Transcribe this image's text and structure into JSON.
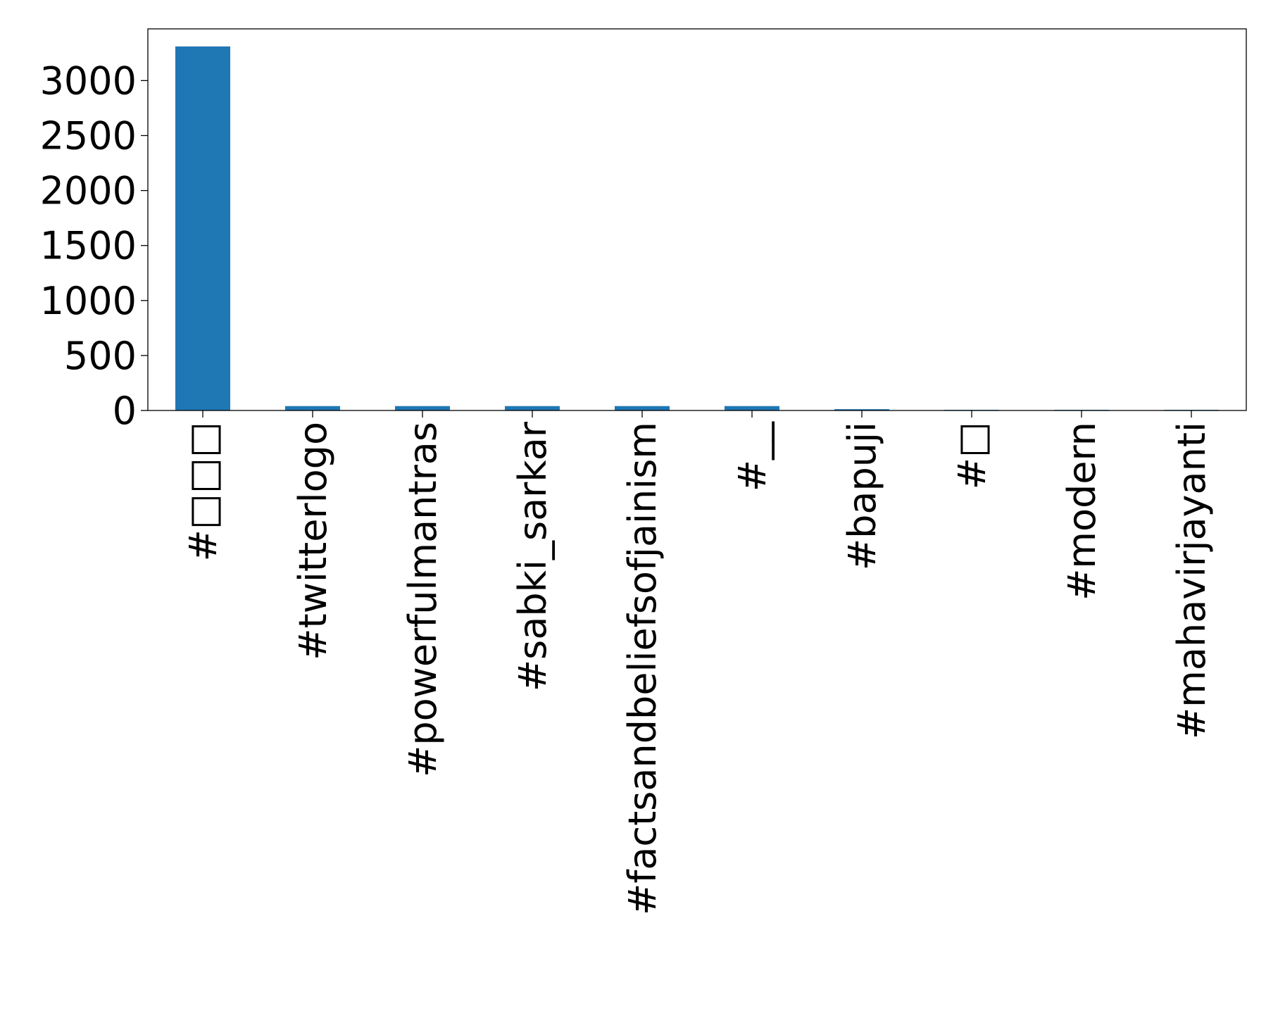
{
  "chart_data": {
    "type": "bar",
    "title": "",
    "xlabel": "",
    "ylabel": "",
    "categories": [
      "#□□□",
      "#twitterlogo",
      "#powerfulmantras",
      "#sabki_sarkar",
      "#factsandbeliefsofjainism",
      "#__",
      "#bapuji",
      "#□",
      "#modern",
      "#mahavirjayanti"
    ],
    "values": [
      3310,
      40,
      40,
      40,
      40,
      40,
      12,
      6,
      6,
      6
    ],
    "ylim": [
      0,
      3470
    ],
    "yticks": [
      0,
      500,
      1000,
      1500,
      2000,
      2500,
      3000
    ],
    "ytick_labels": [
      "0",
      "500",
      "1000",
      "1500",
      "2000",
      "2500",
      "3000"
    ],
    "grid": false,
    "bar_color": "#1f77b4",
    "frame_color": "#000000"
  }
}
